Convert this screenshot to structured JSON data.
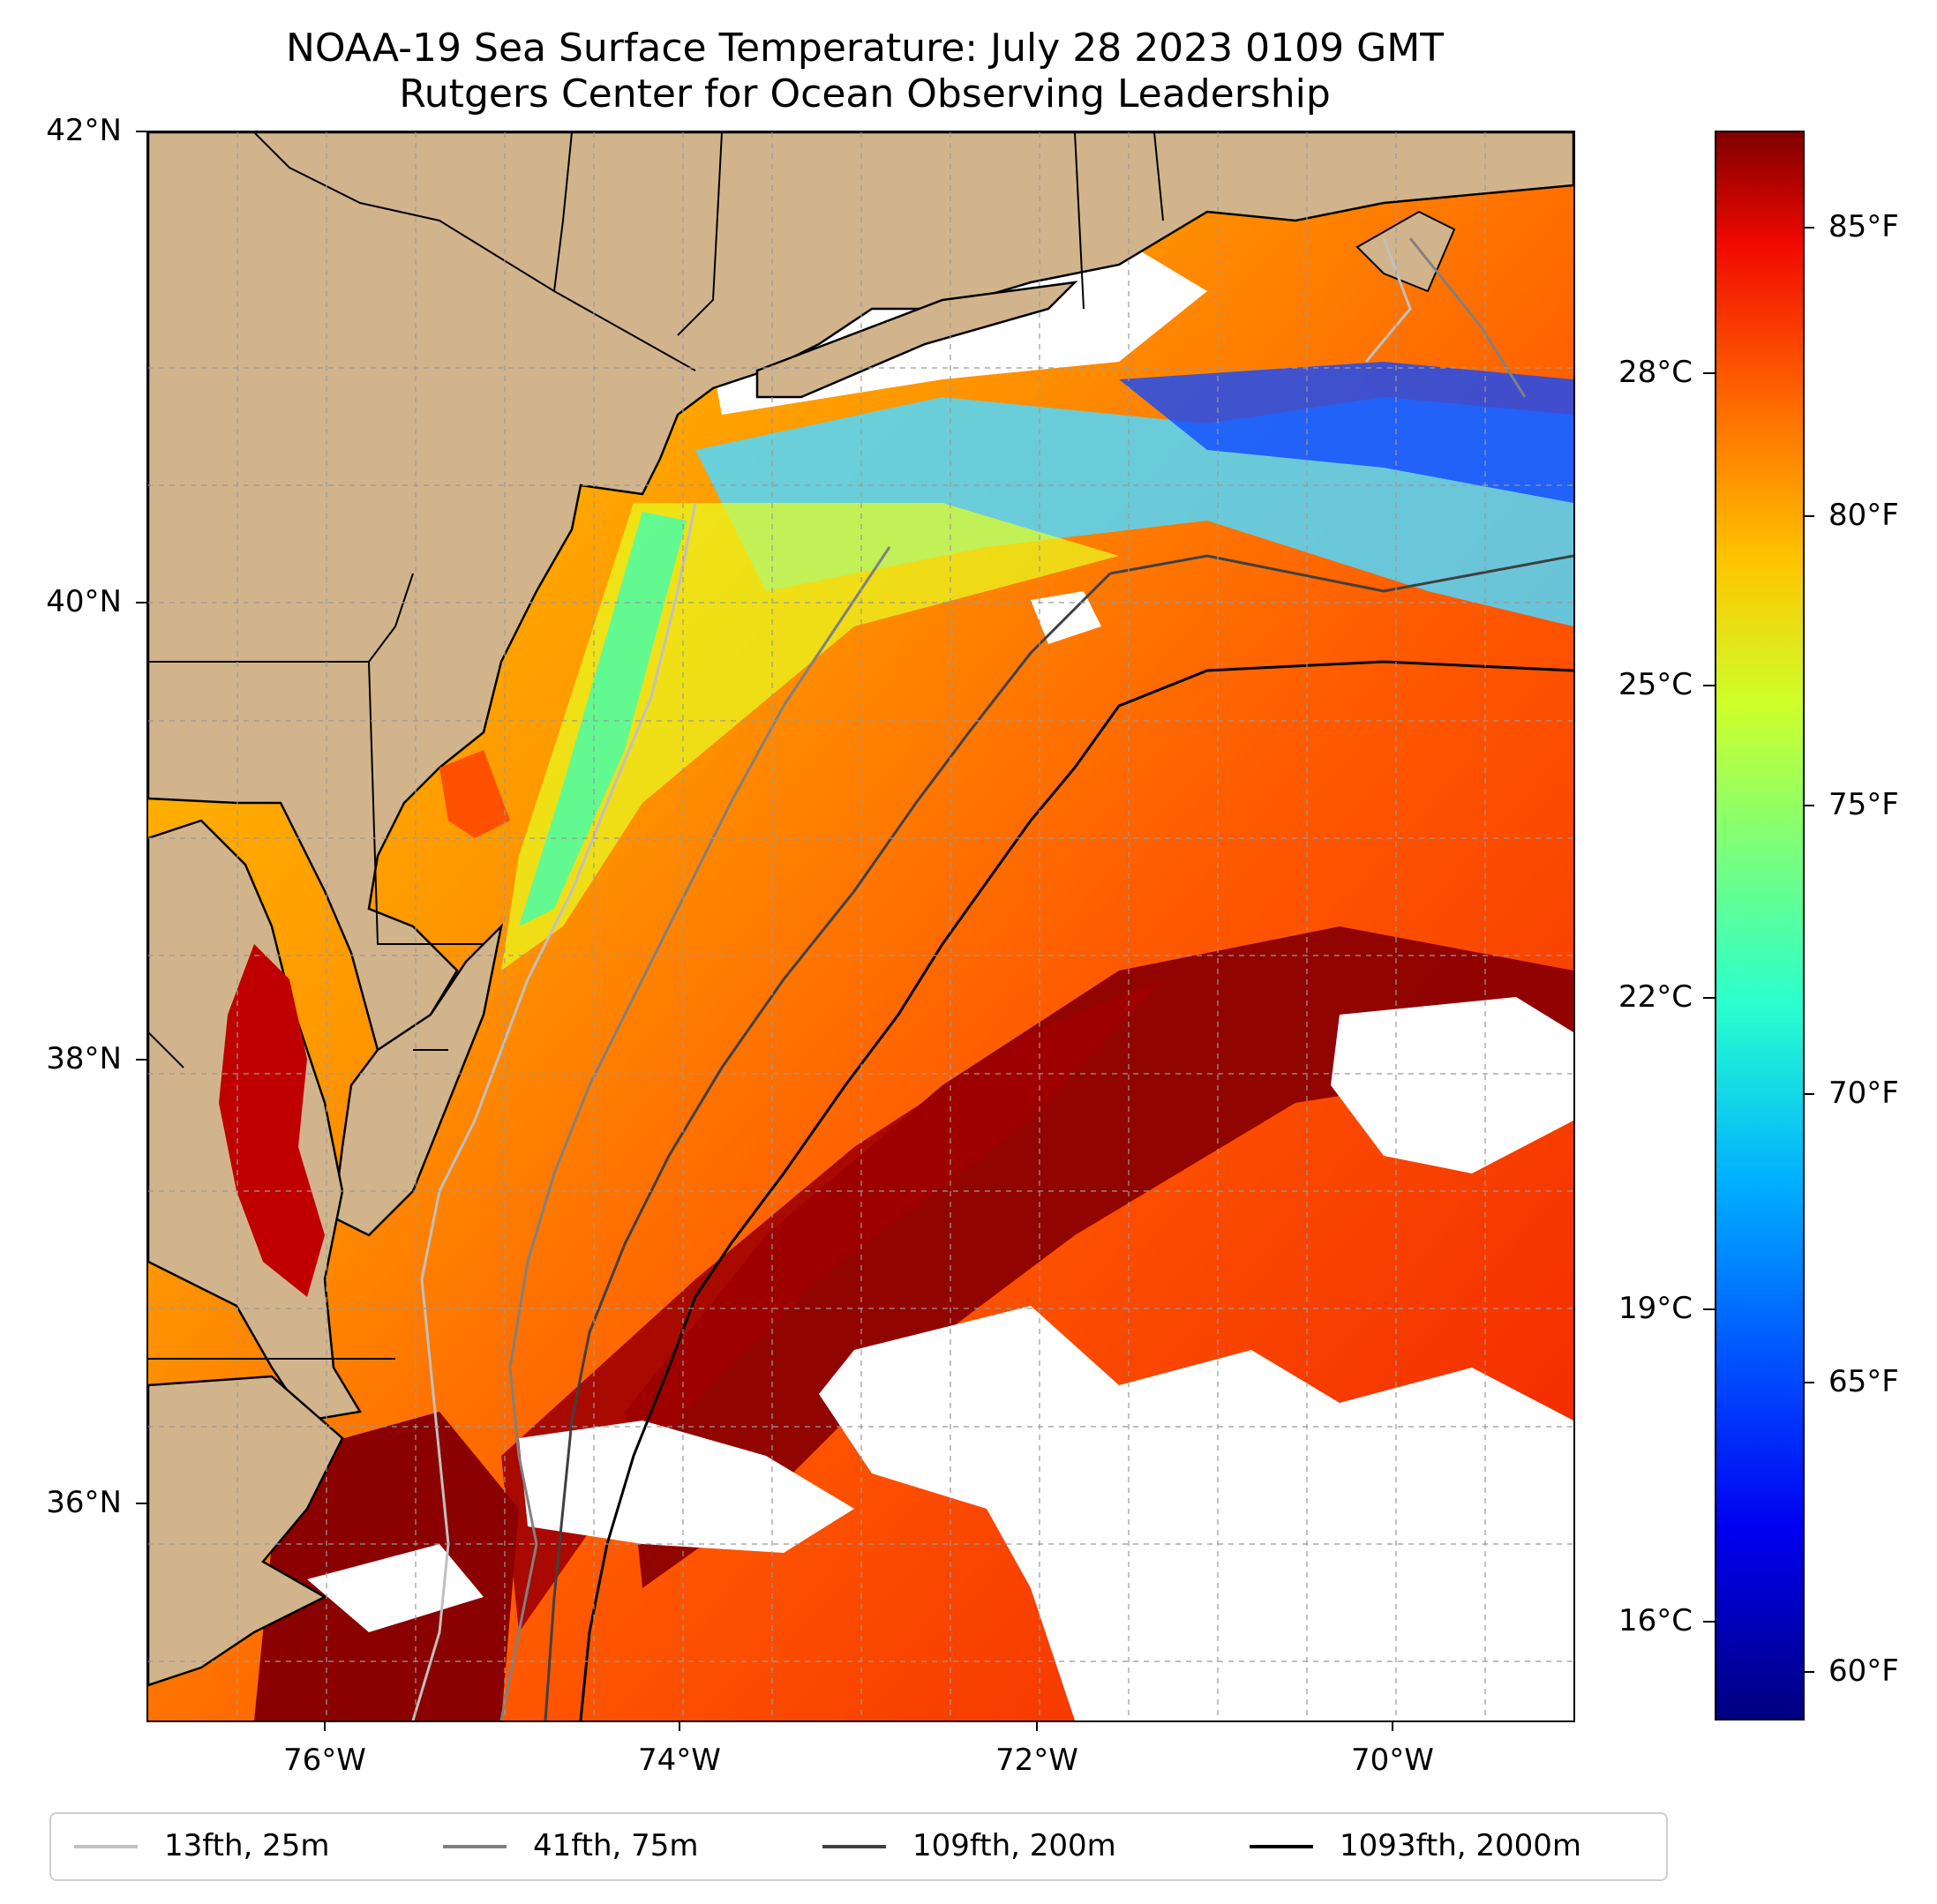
{
  "titles": {
    "line1": "NOAA-19 Sea Surface Temperature: July 28 2023 0109 GMT",
    "line2": "Rutgers Center for Ocean Observing Leadership"
  },
  "axes": {
    "lat_labels": [
      "42°N",
      "40°N",
      "38°N",
      "36°N"
    ],
    "lon_labels": [
      "76°W",
      "74°W",
      "72°W",
      "70°W"
    ]
  },
  "colorbar": {
    "celsius_labels": [
      "28°C",
      "25°C",
      "22°C",
      "19°C",
      "16°C"
    ],
    "fahrenheit_labels": [
      "85°F",
      "80°F",
      "75°F",
      "70°F",
      "65°F",
      "60°F"
    ],
    "colormap": "jet"
  },
  "legend": {
    "items": [
      {
        "label": "13fth, 25m",
        "color": "#c0c0c0"
      },
      {
        "label": "41fth, 75m",
        "color": "#808080"
      },
      {
        "label": "109fth, 200m",
        "color": "#404040"
      },
      {
        "label": "1093fth, 2000m",
        "color": "#000000"
      }
    ]
  },
  "colors": {
    "land": "#d2b48c",
    "cloud_mask": "#ffffff"
  }
}
